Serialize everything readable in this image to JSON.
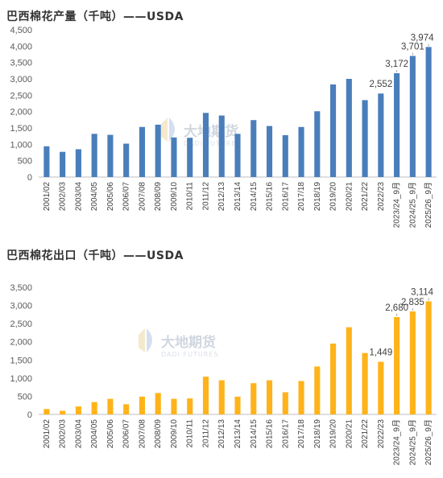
{
  "chart_data": [
    {
      "type": "bar",
      "title": "巴西棉花产量（千吨）——USDA",
      "categories": [
        "2001/02",
        "2002/03",
        "2003/04",
        "2004/05",
        "2005/06",
        "2006/07",
        "2007/08",
        "2008/09",
        "2009/10",
        "2010/11",
        "2011/12",
        "2012/13",
        "2013/14",
        "2014/15",
        "2015/16",
        "2016/17",
        "2017/18",
        "2018/19",
        "2019/20",
        "2020/21",
        "2021/22",
        "2022/23",
        "2023/24_9月",
        "2024/25_9月",
        "2025/26_9月"
      ],
      "values": [
        940,
        770,
        850,
        1320,
        1290,
        1020,
        1530,
        1600,
        1210,
        1200,
        1960,
        1880,
        1320,
        1740,
        1560,
        1280,
        1530,
        2010,
        2830,
        3000,
        2350,
        2552,
        3172,
        3701,
        3974
      ],
      "data_labels": {
        "21": "2,552",
        "22": "3,172",
        "23": "3,701",
        "24": "3,974"
      },
      "ylim": [
        0,
        4500
      ],
      "yticks": [
        "0",
        "500",
        "1,000",
        "1,500",
        "2,000",
        "2,500",
        "3,000",
        "3,500",
        "4,000",
        "4,500"
      ],
      "color": "#4a7ebb",
      "grid": false,
      "legend": "none"
    },
    {
      "type": "bar",
      "title": "巴西棉花出口（千吨）——USDA",
      "categories": [
        "2001/02",
        "2002/03",
        "2003/04",
        "2004/05",
        "2005/06",
        "2006/07",
        "2007/08",
        "2008/09",
        "2009/10",
        "2010/11",
        "2011/12",
        "2012/13",
        "2013/14",
        "2014/15",
        "2015/16",
        "2016/17",
        "2017/18",
        "2018/19",
        "2019/20",
        "2020/21",
        "2021/22",
        "2022/23",
        "2023/24_9月",
        "2024/25_9月",
        "2025/26_9月"
      ],
      "values": [
        150,
        100,
        220,
        340,
        430,
        280,
        490,
        590,
        430,
        440,
        1040,
        940,
        490,
        860,
        940,
        610,
        920,
        1320,
        1950,
        2400,
        1690,
        1449,
        2680,
        2835,
        3114
      ],
      "data_labels": {
        "21": "1,449",
        "22": "2,680",
        "23": "2,835",
        "24": "3,114"
      },
      "ylim": [
        0,
        3500
      ],
      "yticks": [
        "0",
        "500",
        "1,000",
        "1,500",
        "2,000",
        "2,500",
        "3,000",
        "3,500"
      ],
      "color": "#ffb31a",
      "grid": false,
      "legend": "none"
    }
  ],
  "watermark": {
    "name": "大地期货",
    "english": "DADI FUTURES",
    "icon": "dadi-logo-icon"
  }
}
